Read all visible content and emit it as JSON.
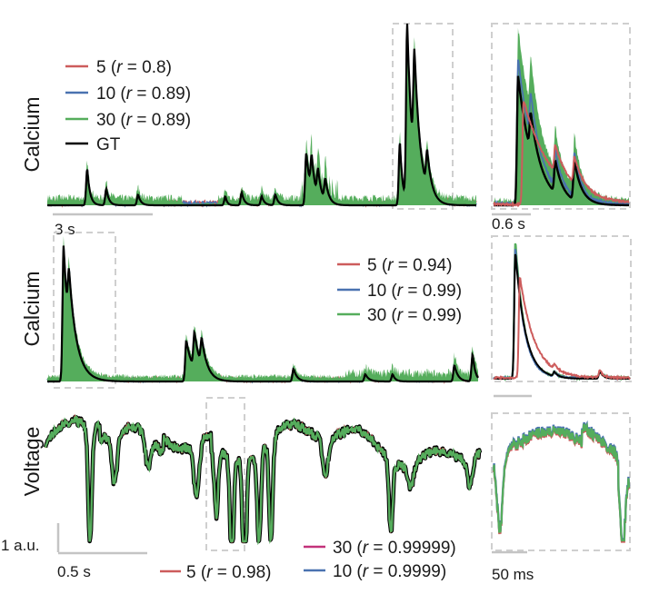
{
  "colors": {
    "s5": "#cd5c5c",
    "s10": "#4a72b0",
    "s30": "#55ad5c",
    "s30_voltage": "#c2327a",
    "gt": "#000000"
  },
  "rows": {
    "calcium1": {
      "ylabel": "Calcium",
      "legend": [
        {
          "key": "s5",
          "pre": "5 (",
          "r": "r",
          "post": " = 0.8)"
        },
        {
          "key": "s10",
          "pre": "10 (",
          "r": "r",
          "post": " = 0.89)"
        },
        {
          "key": "s30",
          "pre": "30 (",
          "r": "r",
          "post": " = 0.89)"
        },
        {
          "key": "gt",
          "pre": "GT",
          "r": "",
          "post": ""
        }
      ],
      "scalebar_main": "3 s",
      "scalebar_zoom": "0.6 s"
    },
    "calcium2": {
      "ylabel": "Calcium",
      "legend": [
        {
          "key": "s5",
          "pre": "5 (",
          "r": "r",
          "post": " = 0.94)"
        },
        {
          "key": "s10",
          "pre": "10 (",
          "r": "r",
          "post": " = 0.99)"
        },
        {
          "key": "s30",
          "pre": "30 (",
          "r": "r",
          "post": " = 0.99)"
        }
      ]
    },
    "voltage": {
      "ylabel": "Voltage",
      "legend": [
        {
          "key": "s5",
          "pre": "5 (",
          "r": "r",
          "post": " = 0.98)"
        },
        {
          "key": "s30_voltage",
          "pre": "30 (",
          "r": "r",
          "post": " = 0.99999)"
        },
        {
          "key": "s10",
          "pre": "10 (",
          "r": "r",
          "post": " = 0.9999)"
        }
      ],
      "scalebar_amp": "1 a.u.",
      "scalebar_main": "0.5 s",
      "scalebar_zoom": "50 ms"
    }
  },
  "chart_data": [
    {
      "type": "line",
      "ylabel": "Calcium",
      "series": [
        {
          "name": "5 (r = 0.8)"
        },
        {
          "name": "10 (r = 0.89)"
        },
        {
          "name": "30 (r = 0.89)"
        },
        {
          "name": "GT"
        }
      ],
      "x_scalebar": "3 s",
      "inset_x_scalebar": "0.6 s"
    },
    {
      "type": "line",
      "ylabel": "Calcium",
      "series": [
        {
          "name": "5 (r = 0.94)"
        },
        {
          "name": "10 (r = 0.99)"
        },
        {
          "name": "30 (r = 0.99)"
        }
      ]
    },
    {
      "type": "line",
      "ylabel": "Voltage",
      "series": [
        {
          "name": "5 (r = 0.98)"
        },
        {
          "name": "30 (r = 0.99999)"
        },
        {
          "name": "10 (r = 0.9999)"
        }
      ],
      "y_scalebar": "1 a.u.",
      "x_scalebar": "0.5 s",
      "inset_x_scalebar": "50 ms"
    }
  ]
}
